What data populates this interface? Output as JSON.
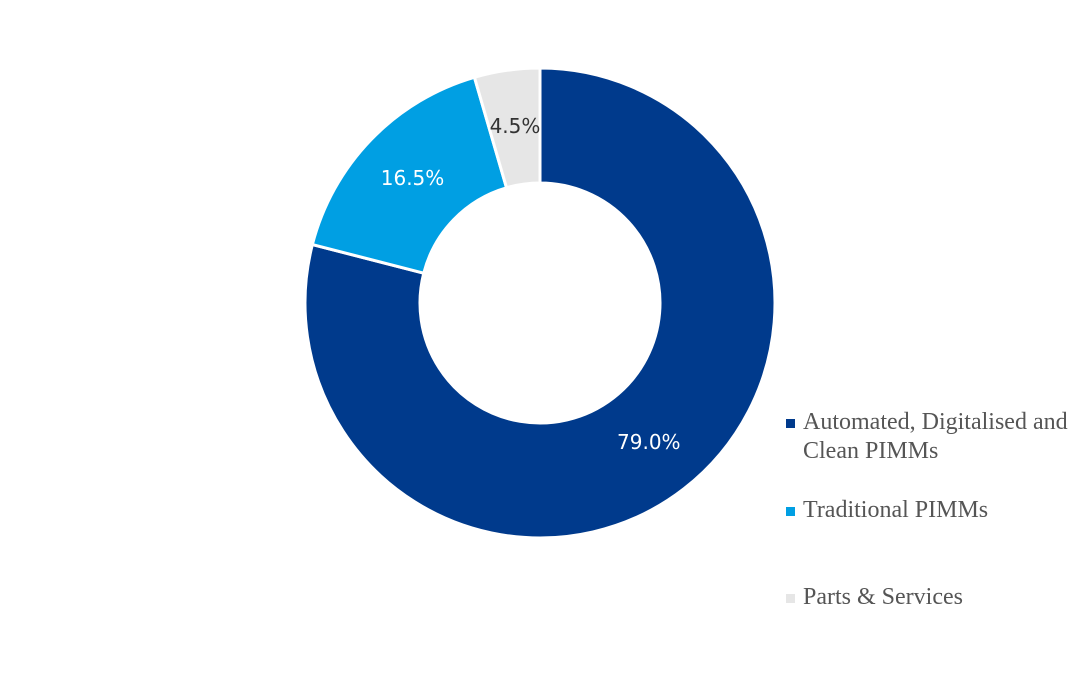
{
  "chart_data": {
    "type": "donut",
    "categories": [
      "Automated, Digitalised and Clean PIMMs",
      "Traditional PIMMs",
      "Parts & Services"
    ],
    "values": [
      79.0,
      16.5,
      4.5
    ],
    "value_labels": [
      "79.0%",
      "16.5%",
      "4.5%"
    ],
    "colors": [
      "#003a8c",
      "#009fe3",
      "#e6e6e6"
    ],
    "label_colors": [
      "#ffffff",
      "#ffffff",
      "#333333"
    ],
    "legend": "right"
  }
}
